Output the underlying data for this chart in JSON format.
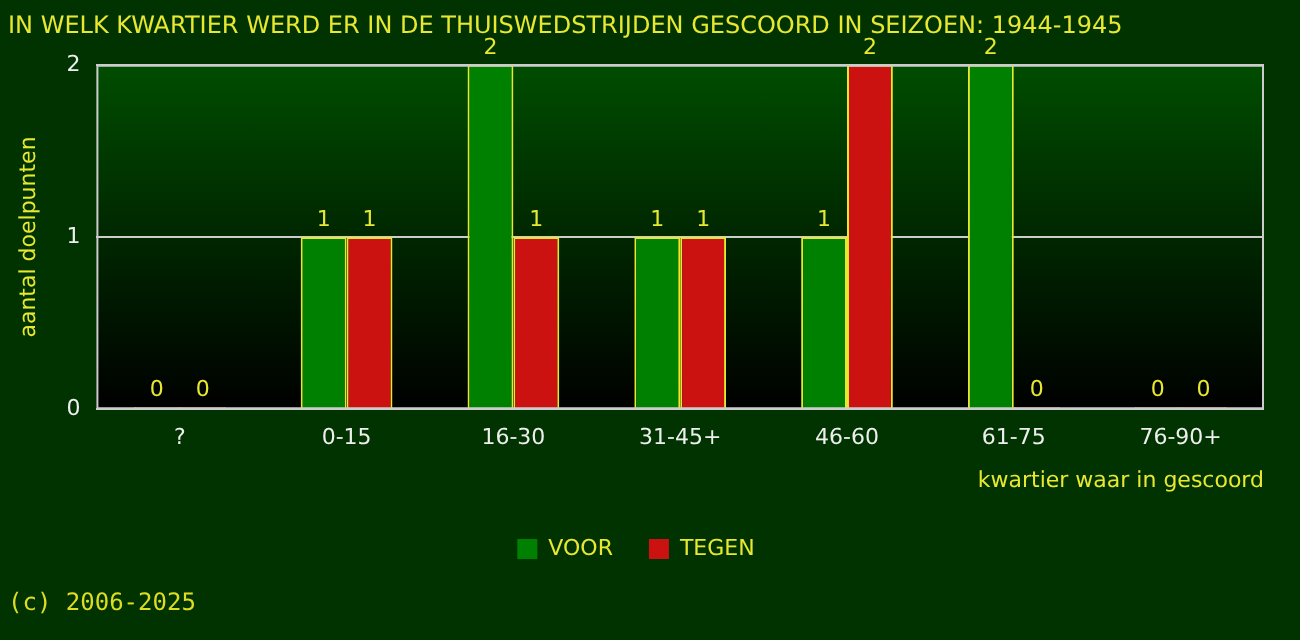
{
  "chart_data": {
    "type": "bar",
    "title": "IN WELK KWARTIER WERD ER IN DE THUISWEDSTRIJDEN GESCOORD IN SEIZOEN: 1944-1945",
    "xlabel": "kwartier waar in gescoord",
    "ylabel": "aantal doelpunten",
    "categories": [
      "?",
      "0-15",
      "16-30",
      "31-45+",
      "46-60",
      "61-75",
      "76-90+"
    ],
    "series": [
      {
        "name": "VOOR",
        "color": "#008000",
        "values": [
          0,
          1,
          2,
          1,
          1,
          2,
          0
        ]
      },
      {
        "name": "TEGEN",
        "color": "#cc1111",
        "values": [
          0,
          1,
          1,
          1,
          2,
          0,
          0
        ]
      }
    ],
    "ylim": [
      0,
      2
    ],
    "yticks": [
      0,
      1,
      2
    ],
    "grid": "y",
    "legend": "bottom",
    "data_labels": true,
    "annotations": [
      "(c) 2006-2025"
    ]
  }
}
